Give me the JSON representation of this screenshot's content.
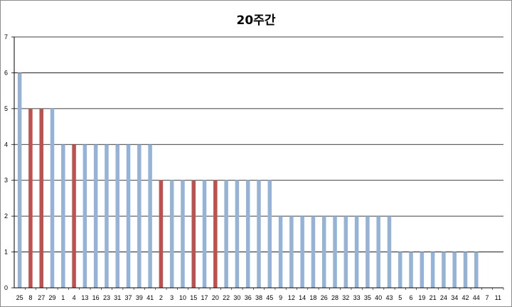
{
  "chart_data": {
    "type": "bar",
    "title": "20주간",
    "xlabel": "",
    "ylabel": "",
    "ylim": [
      0,
      7
    ],
    "yticks": [
      0,
      1,
      2,
      3,
      4,
      5,
      6,
      7
    ],
    "grid": true,
    "legend": "none",
    "categories": [
      "25",
      "8",
      "27",
      "29",
      "1",
      "4",
      "13",
      "16",
      "23",
      "31",
      "37",
      "39",
      "41",
      "2",
      "3",
      "10",
      "15",
      "17",
      "20",
      "22",
      "30",
      "36",
      "38",
      "45",
      "9",
      "12",
      "14",
      "18",
      "26",
      "28",
      "32",
      "33",
      "35",
      "40",
      "43",
      "5",
      "6",
      "19",
      "21",
      "24",
      "34",
      "42",
      "44",
      "7",
      "11"
    ],
    "values": [
      6,
      5,
      5,
      5,
      4,
      4,
      4,
      4,
      4,
      4,
      4,
      4,
      4,
      3,
      3,
      3,
      3,
      3,
      3,
      3,
      3,
      3,
      3,
      3,
      2,
      2,
      2,
      2,
      2,
      2,
      2,
      2,
      2,
      2,
      2,
      1,
      1,
      1,
      1,
      1,
      1,
      1,
      1,
      0,
      0
    ],
    "highlighted": [
      "8",
      "27",
      "4",
      "2",
      "15",
      "20"
    ],
    "colors": {
      "default": "#95b3d7",
      "highlight": "#c0504d",
      "grid": "#000000"
    }
  }
}
